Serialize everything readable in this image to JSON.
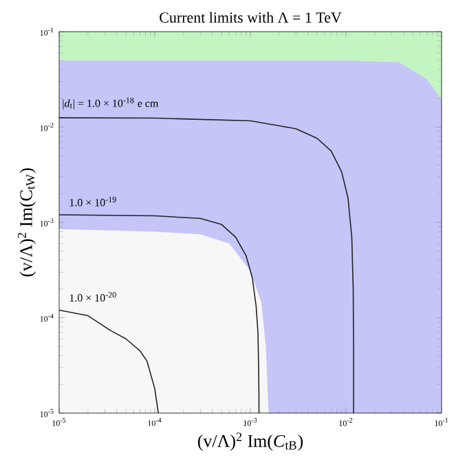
{
  "chart_data": {
    "type": "area",
    "title": "Current limits with Λ = 1 TeV",
    "xlabel": "(v/Λ)$^{2}$ Im(*C*$_{tB}$)",
    "ylabel": "(v/Λ)$^{2}$ Im(C$_{tW}$)",
    "log": "xy",
    "stacked": true,
    "xlim": [
      1e-05,
      0.1
    ],
    "ylim": [
      1e-05,
      0.1
    ],
    "xticks": [
      {
        "value": 1e-05,
        "label": "10$^{-5}$"
      },
      {
        "value": 0.0001,
        "label": "10$^{-4}$"
      },
      {
        "value": 0.001,
        "label": "10$^{-3}$"
      },
      {
        "value": 0.01,
        "label": "10$^{-2}$"
      },
      {
        "value": 0.1,
        "label": "10$^{-1}$"
      }
    ],
    "yticks": [
      {
        "value": 1e-05,
        "label": "10$^{-5}$"
      },
      {
        "value": 0.0001,
        "label": "10$^{-4}$"
      },
      {
        "value": 0.001,
        "label": "10$^{-3}$"
      },
      {
        "value": 0.01,
        "label": "10$^{-2}$"
      },
      {
        "value": 0.1,
        "label": "10$^{-1}$"
      }
    ],
    "series": [
      {
        "color": "#f7f7f7",
        "x": [
          1e-05,
          0.0001,
          0.0003,
          0.0006,
          0.001,
          0.0013,
          0.00145,
          0.00155,
          0.01,
          0.02,
          0.036,
          0.07,
          0.1
        ],
        "values": [
          0.00085,
          0.0008,
          0.00075,
          0.0006,
          0.00031,
          0.000145,
          5e-05,
          1e-05,
          1e-05,
          1e-05,
          1e-05,
          1e-05,
          1e-05
        ]
      },
      {
        "color": "#c5c5f8",
        "x": [
          1e-05,
          0.0001,
          0.0003,
          0.0006,
          0.001,
          0.0013,
          0.00145,
          0.00155,
          0.01,
          0.02,
          0.036,
          0.07,
          0.1
        ],
        "values": [
          0.04915,
          0.0492,
          0.04925,
          0.0494,
          0.04969,
          0.049855,
          0.04995,
          0.04999,
          0.04999,
          0.04899,
          0.04799,
          0.03199,
          0.01949
        ]
      },
      {
        "color": "#c3f5c3",
        "x": [
          1e-05,
          0.0001,
          0.0003,
          0.0006,
          0.001,
          0.0013,
          0.00145,
          0.00155,
          0.01,
          0.02,
          0.036,
          0.07,
          0.1
        ],
        "values": [
          0.05,
          0.05,
          0.05,
          0.05,
          0.05,
          0.05,
          0.05,
          0.05,
          0.05,
          0.051,
          0.052,
          0.068,
          0.0805
        ]
      },
      {
        "type": "line",
        "color": "#222222",
        "x": [
          1e-05,
          0.0001,
          0.001,
          0.003,
          0.005,
          0.007,
          0.009,
          0.0105,
          0.0115,
          0.0119,
          0.012,
          0.012
        ],
        "values": [
          0.0125,
          0.0124,
          0.0116,
          0.0096,
          0.0076,
          0.0056,
          0.0034,
          0.0018,
          0.0007,
          0.0002,
          5e-05,
          1e-05
        ]
      },
      {
        "type": "line",
        "color": "#222222",
        "x": [
          1e-05,
          0.0001,
          0.0003,
          0.0005,
          0.0007,
          0.0009,
          0.00105,
          0.00115,
          0.0012,
          0.00122,
          0.00123,
          0.00123
        ],
        "values": [
          0.0012,
          0.00117,
          0.0011,
          0.00095,
          0.0007,
          0.00045,
          0.00026,
          0.00013,
          7e-05,
          3e-05,
          1.5e-05,
          1e-05
        ]
      },
      {
        "type": "line",
        "color": "#222222",
        "x": [
          1e-05,
          2e-05,
          3.4e-05,
          5e-05,
          7e-05,
          8.3e-05,
          0.0001,
          0.000109
        ],
        "values": [
          0.00012,
          0.000105,
          7.4e-05,
          6e-05,
          4.5e-05,
          3.5e-05,
          1.8e-05,
          1e-05
        ]
      }
    ],
    "annotations": [
      "|*d*$_{t}$| = 1.0 × 10$^{-18}$ e cm",
      "1.0 × 10$^{-19}$",
      "1.0 × 10$^{-20}$"
    ]
  }
}
